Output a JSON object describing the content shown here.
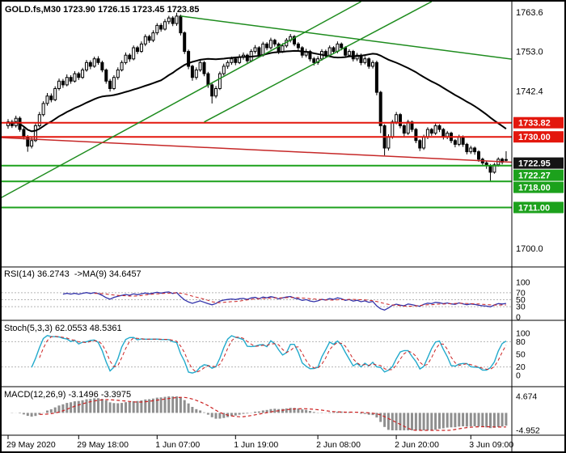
{
  "header": {
    "title": "GOLD.fs,M30 1723.90 1726.15 1723.45 1723.85",
    "symbol": "GOLD.fs",
    "timeframe": "M30",
    "open": "1723.90",
    "high": "1726.15",
    "low": "1723.45",
    "close": "1723.85"
  },
  "indicators": {
    "rsi_label": "RSI(14) 36.2743  ->MA(9) 34.6457",
    "stoch_label": "Stoch(5,3,3) 62.0553 48.5361",
    "macd_label": "MACD(12,26,9) -3.1496 -3.3975"
  },
  "colors": {
    "background": "#ffffff",
    "panel_border": "#000000",
    "axis_text": "#000000",
    "grid_dashed": "#b5b5b5",
    "bull_candle": "#ffffff",
    "bear_candle": "#000000",
    "candle_outline": "#000000",
    "ma_line": "#000000",
    "trend_green": "#1e8c1e",
    "trend_red": "#c62828",
    "level_red": "#e3170d",
    "level_green": "#1ca11c",
    "label_red_bg": "#e3170d",
    "label_green_bg": "#1ca11c",
    "label_current_bg": "#141414",
    "label_text": "#ffffff",
    "rsi_line": "#3333aa",
    "rsi_signal": "#cc2222",
    "stoch_line": "#22aacc",
    "stoch_signal": "#cc2222",
    "macd_hist": "#8f8f8f",
    "macd_signal": "#cc2222"
  },
  "chart_data": [
    {
      "type": "candlestick",
      "title": "GOLD.fs,M30",
      "y_range": [
        1695.0,
        1766.4
      ],
      "y_ticks": [
        {
          "label": "1763.6",
          "value": 1763.6
        },
        {
          "label": "1753.0",
          "value": 1753.0
        },
        {
          "label": "1742.4",
          "value": 1742.4
        },
        {
          "label": "1700.0",
          "value": 1700.0
        }
      ],
      "time_labels": [
        {
          "label": "29 May 2020",
          "bar": 0
        },
        {
          "label": "29 May 18:00",
          "bar": 18
        },
        {
          "label": "1 Jun 07:00",
          "bar": 38
        },
        {
          "label": "1 Jun 19:00",
          "bar": 58
        },
        {
          "label": "2 Jun 08:00",
          "bar": 79
        },
        {
          "label": "2 Jun 20:00",
          "bar": 99
        },
        {
          "label": "3 Jun 09:00",
          "bar": 118
        }
      ],
      "price_levels": [
        {
          "value": 1733.82,
          "label": "1733.82",
          "color": "red"
        },
        {
          "value": 1730.0,
          "label": "1730.00",
          "color": "red"
        },
        {
          "value": 1722.27,
          "label": "1722.27",
          "color": "green"
        },
        {
          "value": 1718.0,
          "label": "1718.00",
          "color": "green"
        },
        {
          "value": 1711.0,
          "label": "1711.00",
          "color": "green"
        }
      ],
      "current_price": {
        "value": 1722.95,
        "label": "1722.95"
      },
      "trend_lines": [
        {
          "color": "green",
          "from": {
            "bar": -2,
            "price": 1713.5
          },
          "to": {
            "bar": 90,
            "price": 1766.4
          }
        },
        {
          "color": "green",
          "from": {
            "bar": 50,
            "price": 1734.0
          },
          "to": {
            "bar": 108,
            "price": 1766.4
          }
        },
        {
          "color": "green",
          "from": {
            "bar": 44,
            "price": 1762.5
          },
          "to": {
            "bar": 146,
            "price": 1748.5
          }
        },
        {
          "color": "red",
          "from": {
            "bar": -2,
            "price": 1729.8
          },
          "to": {
            "bar": 146,
            "price": 1722.3
          }
        }
      ],
      "ma_overlay": {
        "name": "MA",
        "period": 40
      },
      "ohlc": [
        [
          1733.0,
          1734.8,
          1732.2,
          1734.0
        ],
        [
          1734.0,
          1734.6,
          1732.4,
          1733.0
        ],
        [
          1733.0,
          1735.7,
          1732.5,
          1735.0
        ],
        [
          1735.0,
          1735.5,
          1731.4,
          1732.0
        ],
        [
          1732.0,
          1732.6,
          1729.3,
          1730.0
        ],
        [
          1730.0,
          1730.5,
          1726.0,
          1727.5
        ],
        [
          1727.5,
          1729.8,
          1726.9,
          1729.0
        ],
        [
          1729.0,
          1733.6,
          1728.6,
          1733.0
        ],
        [
          1733.0,
          1736.7,
          1732.5,
          1736.0
        ],
        [
          1736.0,
          1739.6,
          1735.5,
          1739.0
        ],
        [
          1739.0,
          1741.8,
          1738.4,
          1741.0
        ],
        [
          1741.0,
          1741.7,
          1739.3,
          1740.0
        ],
        [
          1740.0,
          1743.6,
          1739.6,
          1743.0
        ],
        [
          1743.0,
          1745.7,
          1742.5,
          1745.0
        ],
        [
          1745.0,
          1745.6,
          1743.2,
          1744.0
        ],
        [
          1744.0,
          1746.8,
          1743.6,
          1746.0
        ],
        [
          1746.0,
          1746.6,
          1744.3,
          1745.0
        ],
        [
          1745.0,
          1747.7,
          1744.6,
          1747.0
        ],
        [
          1747.0,
          1747.5,
          1745.3,
          1746.0
        ],
        [
          1746.0,
          1748.6,
          1745.6,
          1748.0
        ],
        [
          1748.0,
          1750.7,
          1747.5,
          1750.0
        ],
        [
          1750.0,
          1750.6,
          1748.2,
          1749.0
        ],
        [
          1749.0,
          1751.6,
          1748.6,
          1751.0
        ],
        [
          1751.0,
          1751.7,
          1749.4,
          1750.0
        ],
        [
          1750.0,
          1750.5,
          1747.4,
          1748.0
        ],
        [
          1748.0,
          1748.4,
          1744.3,
          1745.0
        ],
        [
          1745.0,
          1745.6,
          1742.2,
          1743.0
        ],
        [
          1743.0,
          1746.6,
          1742.6,
          1746.0
        ],
        [
          1746.0,
          1748.7,
          1745.4,
          1748.0
        ],
        [
          1748.0,
          1750.6,
          1747.6,
          1750.0
        ],
        [
          1750.0,
          1752.7,
          1749.5,
          1752.0
        ],
        [
          1752.0,
          1752.5,
          1750.2,
          1751.0
        ],
        [
          1751.0,
          1754.6,
          1750.6,
          1754.0
        ],
        [
          1754.0,
          1754.5,
          1752.3,
          1753.0
        ],
        [
          1753.0,
          1755.7,
          1752.6,
          1755.0
        ],
        [
          1755.0,
          1757.6,
          1754.4,
          1757.0
        ],
        [
          1757.0,
          1757.5,
          1755.3,
          1756.0
        ],
        [
          1756.0,
          1758.7,
          1755.5,
          1758.0
        ],
        [
          1758.0,
          1760.6,
          1757.4,
          1760.0
        ],
        [
          1760.0,
          1760.6,
          1758.3,
          1759.0
        ],
        [
          1759.0,
          1761.7,
          1758.6,
          1761.0
        ],
        [
          1761.0,
          1762.6,
          1760.3,
          1762.0
        ],
        [
          1762.0,
          1762.5,
          1759.8,
          1760.5
        ],
        [
          1760.5,
          1763.4,
          1759.9,
          1762.5
        ],
        [
          1762.5,
          1762.9,
          1757.3,
          1758.0
        ],
        [
          1758.0,
          1758.4,
          1752.3,
          1753.0
        ],
        [
          1753.0,
          1753.5,
          1748.2,
          1749.0
        ],
        [
          1749.0,
          1749.4,
          1745.1,
          1746.0
        ],
        [
          1746.0,
          1748.7,
          1745.4,
          1748.0
        ],
        [
          1748.0,
          1750.6,
          1747.5,
          1750.0
        ],
        [
          1750.0,
          1750.4,
          1746.3,
          1747.0
        ],
        [
          1747.0,
          1747.5,
          1743.2,
          1744.0
        ],
        [
          1744.0,
          1744.4,
          1739.0,
          1741.0
        ],
        [
          1741.0,
          1743.7,
          1740.4,
          1743.0
        ],
        [
          1743.0,
          1747.6,
          1742.6,
          1747.0
        ],
        [
          1747.0,
          1749.7,
          1746.5,
          1749.0
        ],
        [
          1749.0,
          1750.6,
          1748.3,
          1750.0
        ],
        [
          1750.0,
          1751.6,
          1749.4,
          1751.0
        ],
        [
          1751.0,
          1751.5,
          1749.3,
          1750.0
        ],
        [
          1750.0,
          1752.2,
          1749.6,
          1751.5
        ],
        [
          1751.5,
          1752.7,
          1750.8,
          1752.0
        ],
        [
          1752.0,
          1752.4,
          1749.9,
          1750.5
        ],
        [
          1750.5,
          1753.6,
          1750.1,
          1753.0
        ],
        [
          1753.0,
          1754.7,
          1752.4,
          1754.0
        ],
        [
          1754.0,
          1754.4,
          1751.4,
          1752.0
        ],
        [
          1752.0,
          1755.6,
          1751.6,
          1755.0
        ],
        [
          1755.0,
          1755.5,
          1753.3,
          1754.0
        ],
        [
          1754.0,
          1756.7,
          1753.5,
          1756.0
        ],
        [
          1756.0,
          1756.4,
          1754.3,
          1755.0
        ],
        [
          1755.0,
          1755.4,
          1752.3,
          1753.0
        ],
        [
          1753.0,
          1755.2,
          1752.6,
          1754.5
        ],
        [
          1754.5,
          1756.6,
          1754.0,
          1756.0
        ],
        [
          1756.0,
          1757.7,
          1755.4,
          1757.0
        ],
        [
          1757.0,
          1757.4,
          1754.4,
          1755.0
        ],
        [
          1755.0,
          1755.5,
          1753.3,
          1754.0
        ],
        [
          1754.0,
          1754.4,
          1751.3,
          1752.0
        ],
        [
          1752.0,
          1753.7,
          1751.4,
          1753.0
        ],
        [
          1753.0,
          1753.4,
          1750.3,
          1751.0
        ],
        [
          1751.0,
          1751.5,
          1749.2,
          1750.0
        ],
        [
          1750.0,
          1751.7,
          1749.4,
          1751.0
        ],
        [
          1751.0,
          1753.6,
          1750.5,
          1753.0
        ],
        [
          1753.0,
          1753.5,
          1751.3,
          1752.0
        ],
        [
          1752.0,
          1754.6,
          1751.6,
          1754.0
        ],
        [
          1754.0,
          1754.4,
          1752.3,
          1753.0
        ],
        [
          1753.0,
          1755.7,
          1752.5,
          1755.0
        ],
        [
          1755.0,
          1755.4,
          1753.3,
          1754.0
        ],
        [
          1754.0,
          1754.4,
          1751.3,
          1752.0
        ],
        [
          1752.0,
          1753.6,
          1751.5,
          1753.0
        ],
        [
          1753.0,
          1753.4,
          1750.3,
          1751.0
        ],
        [
          1751.0,
          1752.6,
          1750.4,
          1752.0
        ],
        [
          1752.0,
          1752.4,
          1749.3,
          1750.0
        ],
        [
          1750.0,
          1751.7,
          1749.5,
          1751.0
        ],
        [
          1751.0,
          1751.4,
          1748.3,
          1749.0
        ],
        [
          1749.0,
          1750.6,
          1748.4,
          1750.0
        ],
        [
          1750.0,
          1750.5,
          1741.2,
          1742.0
        ],
        [
          1742.0,
          1742.4,
          1731.0,
          1733.0
        ],
        [
          1733.0,
          1733.4,
          1725.0,
          1727.0
        ],
        [
          1727.0,
          1730.7,
          1726.3,
          1730.0
        ],
        [
          1730.0,
          1734.6,
          1729.5,
          1734.0
        ],
        [
          1734.0,
          1736.7,
          1733.4,
          1736.0
        ],
        [
          1736.0,
          1736.4,
          1732.3,
          1733.0
        ],
        [
          1733.0,
          1733.4,
          1730.2,
          1731.0
        ],
        [
          1731.0,
          1734.6,
          1730.5,
          1734.0
        ],
        [
          1734.0,
          1734.4,
          1731.3,
          1732.0
        ],
        [
          1732.0,
          1732.4,
          1728.3,
          1729.0
        ],
        [
          1729.0,
          1729.4,
          1726.2,
          1727.0
        ],
        [
          1727.0,
          1730.6,
          1726.5,
          1730.0
        ],
        [
          1730.0,
          1732.6,
          1729.4,
          1732.0
        ],
        [
          1732.0,
          1732.4,
          1730.3,
          1731.0
        ],
        [
          1731.0,
          1733.6,
          1730.5,
          1733.0
        ],
        [
          1733.0,
          1733.4,
          1731.3,
          1732.0
        ],
        [
          1732.0,
          1732.4,
          1729.3,
          1730.0
        ],
        [
          1730.0,
          1731.6,
          1729.4,
          1731.0
        ],
        [
          1731.0,
          1731.4,
          1728.3,
          1729.0
        ],
        [
          1729.0,
          1729.4,
          1727.2,
          1728.0
        ],
        [
          1728.0,
          1730.6,
          1727.5,
          1730.0
        ],
        [
          1730.0,
          1730.4,
          1727.3,
          1728.0
        ],
        [
          1728.0,
          1728.4,
          1725.3,
          1726.0
        ],
        [
          1726.0,
          1727.6,
          1725.4,
          1727.0
        ],
        [
          1727.0,
          1727.4,
          1725.2,
          1726.0
        ],
        [
          1726.0,
          1726.4,
          1723.3,
          1724.0
        ],
        [
          1724.0,
          1724.4,
          1722.2,
          1723.0
        ],
        [
          1723.0,
          1723.5,
          1721.4,
          1722.3
        ],
        [
          1722.3,
          1722.7,
          1717.9,
          1720.5
        ],
        [
          1720.5,
          1723.0,
          1720.1,
          1722.5
        ],
        [
          1722.5,
          1724.5,
          1722.0,
          1724.0
        ],
        [
          1724.0,
          1724.4,
          1722.6,
          1723.2
        ],
        [
          1723.9,
          1726.15,
          1723.45,
          1723.85
        ]
      ]
    },
    {
      "type": "line",
      "name": "RSI",
      "period": 14,
      "ma_period": 9,
      "current_value": 36.2743,
      "current_ma": 34.6457,
      "range": [
        0,
        100
      ],
      "levels": [
        70,
        50,
        30
      ],
      "y_ticks": [
        {
          "label": "100",
          "value": 100
        },
        {
          "label": "70",
          "value": 70
        },
        {
          "label": "50",
          "value": 50
        },
        {
          "label": "30",
          "value": 30
        },
        {
          "label": "0",
          "value": 0
        }
      ]
    },
    {
      "type": "line",
      "name": "Stochastic",
      "k_period": 5,
      "d_period": 3,
      "slowing": 3,
      "current_k": 62.0553,
      "current_d": 48.5361,
      "range": [
        0,
        100
      ],
      "levels": [
        80,
        20
      ],
      "y_ticks": [
        {
          "label": "100",
          "value": 100
        },
        {
          "label": "80",
          "value": 80
        },
        {
          "label": "50",
          "value": 50
        },
        {
          "label": "20",
          "value": 20
        },
        {
          "label": "0",
          "value": 0
        }
      ]
    },
    {
      "type": "bar",
      "name": "MACD",
      "fast_ema": 12,
      "slow_ema": 26,
      "signal_period": 9,
      "current_macd": -3.1496,
      "current_signal": -3.3975,
      "range": [
        -4.952,
        4.674
      ],
      "levels": [],
      "y_ticks": [
        {
          "label": "4.674",
          "value": 4.674
        },
        {
          "label": "-4.952",
          "value": -4.952
        }
      ]
    }
  ]
}
